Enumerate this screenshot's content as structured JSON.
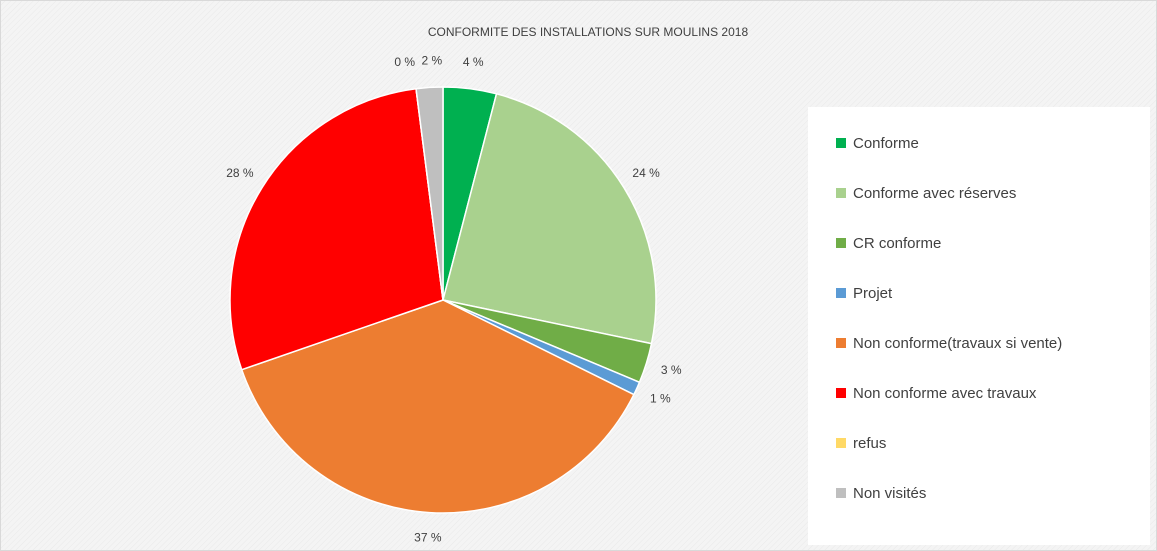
{
  "chart_data": {
    "type": "pie",
    "title": "CONFORMITE DES INSTALLATIONS SUR MOULINS 2018",
    "categories": [
      "Conforme",
      "Conforme avec réserves",
      "CR conforme",
      "Projet",
      "Non conforme(travaux si vente)",
      "Non conforme avec travaux",
      "refus",
      "Non visités"
    ],
    "values": [
      4,
      24,
      3,
      1,
      37,
      28,
      0,
      2
    ],
    "value_labels": [
      "4 %",
      "24 %",
      "3 %",
      "1 %",
      "37 %",
      "28 %",
      "0 %",
      "2 %"
    ],
    "colors": [
      "#00b050",
      "#a9d18e",
      "#70ad47",
      "#5b9bd5",
      "#ed7d31",
      "#ff0000",
      "#ffd966",
      "#bfbfbf"
    ],
    "legend": "right"
  }
}
